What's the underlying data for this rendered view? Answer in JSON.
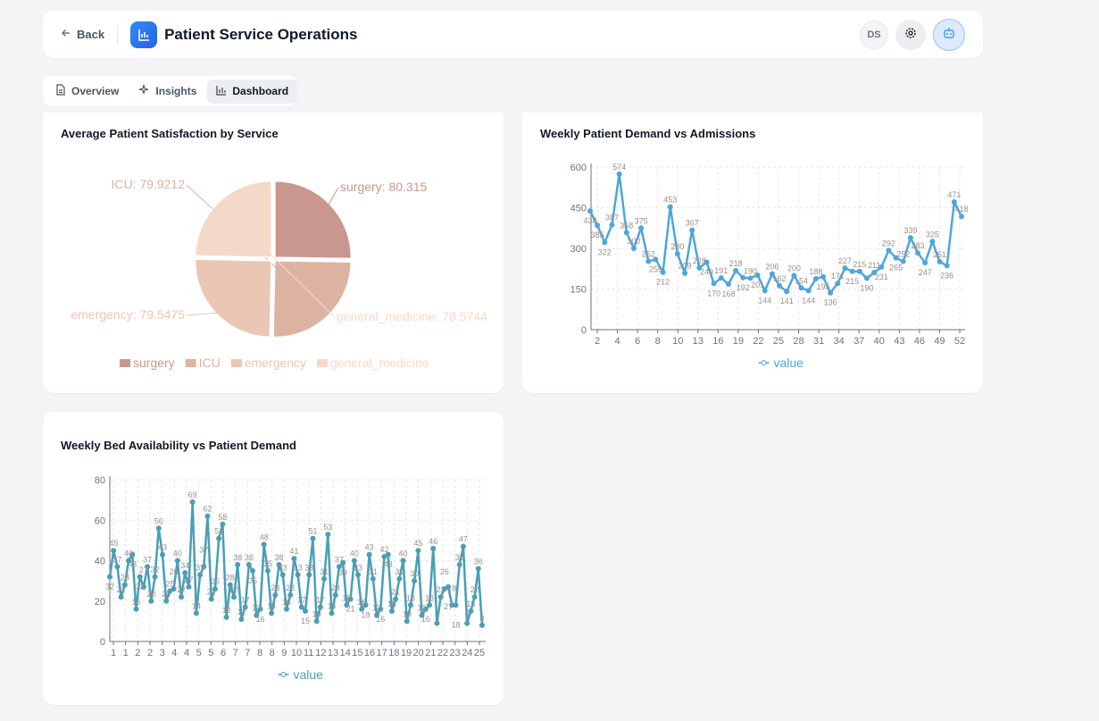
{
  "header": {
    "back_label": "Back",
    "title": "Patient Service Operations",
    "avatar_initials": "DS",
    "icons": [
      "arrow-left-icon",
      "bar-chart-icon",
      "gear-icon",
      "robot-icon"
    ]
  },
  "tabs": [
    {
      "label": "Overview",
      "icon": "document-icon"
    },
    {
      "label": "Insights",
      "icon": "sparkle-icon"
    },
    {
      "label": "Dashboard",
      "icon": "bar-chart-icon",
      "active": true
    }
  ],
  "colors": {
    "accent": "#2563eb",
    "line1": "#4da6dc",
    "line2": "#4a9fb5"
  },
  "chart_data": [
    {
      "type": "pie",
      "title": "Average Patient Satisfaction by Service",
      "labels": [
        "surgery",
        "ICU",
        "emergency",
        "general_medicine"
      ],
      "values": [
        80.315,
        79.9212,
        79.5475,
        78.5744
      ],
      "slice_labels": [
        "surgery: 80.315",
        "ICU: 79.9212",
        "emergency: 79.5475",
        "general_medicine: 78.5744"
      ],
      "colors": [
        "#c9978d",
        "#dcb3a1",
        "#e9c7b2",
        "#f5d9c8"
      ],
      "legend": "bottom"
    },
    {
      "type": "line",
      "title": "Weekly Patient Demand vs Admissions",
      "series_name": "value",
      "x": [
        1,
        2,
        3,
        4,
        5,
        6,
        7,
        8,
        9,
        10,
        11,
        12,
        13,
        14,
        15,
        16,
        17,
        18,
        19,
        20,
        21,
        22,
        23,
        24,
        25,
        26,
        27,
        28,
        29,
        30,
        31,
        32,
        33,
        34,
        35,
        36,
        37,
        38,
        39,
        40,
        41,
        42,
        43,
        44,
        45,
        46,
        47,
        48,
        49,
        50,
        51,
        52
      ],
      "values": [
        438,
        385,
        322,
        387,
        574,
        358,
        300,
        375,
        252,
        259,
        212,
        453,
        280,
        209,
        367,
        228,
        249,
        170,
        191,
        168,
        218,
        192,
        190,
        201,
        144,
        206,
        162,
        141,
        200,
        154,
        144,
        188,
        195,
        136,
        171,
        227,
        215,
        215,
        190,
        211,
        231,
        292,
        265,
        252,
        339,
        283,
        247,
        325,
        251,
        236,
        471,
        418
      ],
      "x_tick_labels": [
        "2",
        "4",
        "6",
        "8",
        "10",
        "13",
        "16",
        "19",
        "22",
        "25",
        "28",
        "31",
        "34",
        "37",
        "40",
        "43",
        "46",
        "49",
        "52"
      ],
      "y_ticks": [
        0,
        150,
        300,
        450,
        600
      ],
      "ylim": [
        0,
        600
      ],
      "grid": true,
      "legend": "bottom",
      "color": "#4da6dc"
    },
    {
      "type": "line",
      "title": "Weekly Bed Availability vs Patient Demand",
      "series_name": "value",
      "values": [
        32,
        45,
        37,
        22,
        28,
        40,
        43,
        16,
        32,
        27,
        37,
        20,
        32,
        56,
        43,
        20,
        25,
        26,
        40,
        22,
        34,
        27,
        69,
        14,
        33,
        37,
        62,
        21,
        26,
        51,
        58,
        12,
        28,
        22,
        38,
        11,
        17,
        38,
        35,
        13,
        16,
        48,
        35,
        14,
        23,
        38,
        33,
        16,
        23,
        41,
        33,
        17,
        15,
        33,
        51,
        10,
        17,
        31,
        53,
        14,
        23,
        37,
        39,
        18,
        21,
        40,
        33,
        16,
        18,
        43,
        31,
        13,
        16,
        42,
        43,
        15,
        21,
        31,
        40,
        10,
        18,
        30,
        45,
        13,
        16,
        18,
        46,
        9,
        22,
        26,
        27,
        18,
        18,
        38,
        47,
        9,
        15,
        22,
        36,
        8
      ],
      "x_tick_labels": [
        "1",
        "1",
        "2",
        "2",
        "3",
        "4",
        "4",
        "5",
        "5",
        "6",
        "7",
        "7",
        "8",
        "8",
        "9",
        "10",
        "11",
        "12",
        "13",
        "14",
        "15",
        "16",
        "17",
        "18",
        "19",
        "20",
        "21",
        "22",
        "23",
        "24",
        "25"
      ],
      "y_ticks": [
        0,
        20,
        40,
        60,
        80
      ],
      "ylim": [
        0,
        80
      ],
      "grid": true,
      "legend": "bottom",
      "color": "#4a9fb5"
    }
  ]
}
